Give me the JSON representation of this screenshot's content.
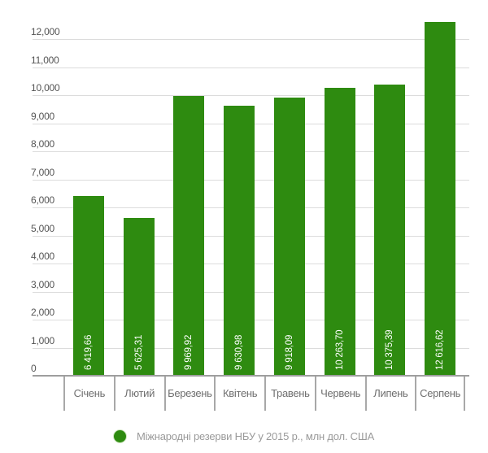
{
  "chart_data": {
    "type": "bar",
    "title": "",
    "categories": [
      "Січень",
      "Лютий",
      "Березень",
      "Квітень",
      "Травень",
      "Червень",
      "Липень",
      "Серпень"
    ],
    "series": [
      {
        "name": "Міжнародні резерви НБУ у 2015 р., млн дол. США",
        "values": [
          6419.66,
          5625.31,
          9969.92,
          9630.98,
          9918.09,
          10263.7,
          10375.39,
          12616.62
        ],
        "value_labels": [
          "6 419,66",
          "5 625,31",
          "9 969,92",
          "9 630,98",
          "9 918,09",
          "10 263,70",
          "10 375,39",
          "12 616,62"
        ]
      }
    ],
    "legend": "Міжнародні резерви НБУ у 2015 р., млн дол. США",
    "legend_position": "bottom",
    "xlabel": "",
    "ylabel": "",
    "ylim": [
      0,
      12000
    ],
    "y_tick_step": 1000,
    "y_tick_labels": [
      "0",
      "1,000",
      "2,000",
      "3,000",
      "4,000",
      "5,000",
      "6,000",
      "7,000",
      "8,000",
      "9,000",
      "10,000",
      "11,000",
      "12,000"
    ],
    "grid": true,
    "colors": {
      "bar": "#2e8b10",
      "gridline": "#dcdcdc",
      "axis_line": "#9e9e9e",
      "y_tick_text": "#555555",
      "x_label_text": "#6f6f6f",
      "bar_value_text": "#ffffff",
      "legend_text": "#9a9a9a",
      "background": "#ffffff"
    }
  }
}
